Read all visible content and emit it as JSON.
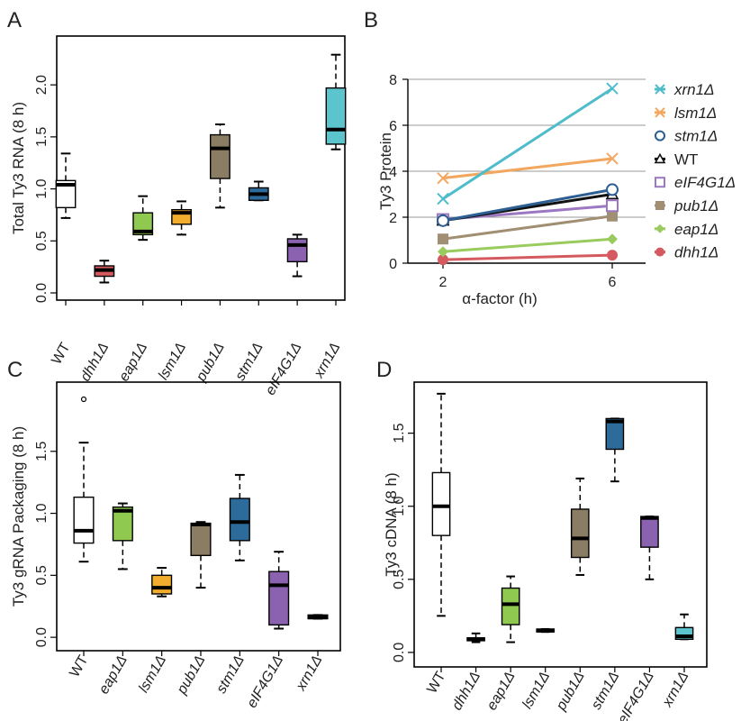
{
  "chart_data": [
    {
      "panel": "A",
      "type": "box",
      "ylabel": "Total Ty3 RNA (8 h)",
      "ylim": [
        0,
        2.4
      ],
      "yticks": [
        0.0,
        0.5,
        1.0,
        1.5,
        2.0
      ],
      "ytick_labels": [
        "0.0",
        "0.5",
        "1.0",
        "1.5",
        "2.0"
      ],
      "categories": [
        "WT",
        "dhh1Δ",
        "eap1Δ",
        "lsm1Δ",
        "pub1Δ",
        "stm1Δ",
        "eIF4G1Δ",
        "xrn1Δ"
      ],
      "italic": [
        false,
        true,
        true,
        true,
        true,
        true,
        true,
        true
      ],
      "colors": [
        "#ffffff",
        "#d45a5f",
        "#8fc94f",
        "#f2ac2e",
        "#8a7d63",
        "#2d6b9a",
        "#8a62b0",
        "#5bc4cd"
      ],
      "boxes": [
        {
          "whislo": 0.72,
          "q1": 0.82,
          "med": 1.04,
          "q3": 1.08,
          "whishi": 1.34
        },
        {
          "whislo": 0.1,
          "q1": 0.16,
          "med": 0.22,
          "q3": 0.26,
          "whishi": 0.31
        },
        {
          "whislo": 0.51,
          "q1": 0.56,
          "med": 0.59,
          "q3": 0.77,
          "whishi": 0.93
        },
        {
          "whislo": 0.56,
          "q1": 0.66,
          "med": 0.77,
          "q3": 0.8,
          "whishi": 0.88
        },
        {
          "whislo": 0.82,
          "q1": 1.1,
          "med": 1.39,
          "q3": 1.52,
          "whishi": 1.62
        },
        {
          "whislo": 0.89,
          "q1": 0.89,
          "med": 0.95,
          "q3": 1.01,
          "whishi": 1.07
        },
        {
          "whislo": 0.16,
          "q1": 0.3,
          "med": 0.46,
          "q3": 0.52,
          "whishi": 0.56
        },
        {
          "whislo": 1.38,
          "q1": 1.43,
          "med": 1.57,
          "q3": 1.97,
          "whishi": 2.29
        }
      ]
    },
    {
      "panel": "B",
      "type": "line",
      "ylabel": "Ty3 Protein",
      "xlabel": "α-factor (h)",
      "x": [
        2,
        6
      ],
      "xticks": [
        2,
        6
      ],
      "ylim": [
        0,
        8
      ],
      "yticks": [
        0,
        2,
        4,
        6,
        8
      ],
      "grid": true,
      "legend_position": "right",
      "series": [
        {
          "name": "xrn1Δ",
          "italic": true,
          "color": "#4fbccb",
          "marker": "x",
          "values": [
            2.8,
            7.6
          ]
        },
        {
          "name": "lsm1Δ",
          "italic": true,
          "color": "#f2a75e",
          "marker": "x",
          "values": [
            3.7,
            4.55
          ]
        },
        {
          "name": "stm1Δ",
          "italic": true,
          "color": "#2d5f93",
          "marker": "circle-open",
          "values": [
            1.85,
            3.2
          ]
        },
        {
          "name": "WT",
          "italic": false,
          "color": "#111111",
          "marker": "triangle-open",
          "values": [
            1.85,
            3.0
          ]
        },
        {
          "name": "eIF4G1Δ",
          "italic": true,
          "color": "#9c78c2",
          "marker": "square-open",
          "values": [
            1.9,
            2.5
          ]
        },
        {
          "name": "pub1Δ",
          "italic": true,
          "color": "#a08f72",
          "marker": "square",
          "values": [
            1.05,
            2.05
          ]
        },
        {
          "name": "eap1Δ",
          "italic": true,
          "color": "#9acb5e",
          "marker": "diamond",
          "values": [
            0.5,
            1.05
          ]
        },
        {
          "name": "dhh1Δ",
          "italic": true,
          "color": "#d45a5f",
          "marker": "circle",
          "values": [
            0.15,
            0.35
          ]
        }
      ]
    },
    {
      "panel": "C",
      "type": "box",
      "ylabel": "Ty3 gRNA Packaging (8 h)",
      "ylim": [
        -0.05,
        2.0
      ],
      "yticks": [
        0.0,
        0.5,
        1.0,
        1.5
      ],
      "ytick_labels": [
        "0.0",
        "0.5",
        "1.0",
        "1.5"
      ],
      "categories": [
        "WT",
        "eap1Δ",
        "lsm1Δ",
        "pub1Δ",
        "stm1Δ",
        "eIF4G1Δ",
        "xrn1Δ"
      ],
      "italic": [
        false,
        true,
        true,
        true,
        true,
        true,
        true
      ],
      "colors": [
        "#ffffff",
        "#8fc94f",
        "#f2ac2e",
        "#8a7d63",
        "#2d6b9a",
        "#8a62b0",
        "#222222"
      ],
      "boxes": [
        {
          "whislo": 0.61,
          "q1": 0.76,
          "med": 0.86,
          "q3": 1.13,
          "whishi": 1.57,
          "outliers": [
            1.92
          ]
        },
        {
          "whislo": 0.55,
          "q1": 0.78,
          "med": 1.02,
          "q3": 1.05,
          "whishi": 1.08
        },
        {
          "whislo": 0.33,
          "q1": 0.35,
          "med": 0.4,
          "q3": 0.5,
          "whishi": 0.56
        },
        {
          "whislo": 0.4,
          "q1": 0.66,
          "med": 0.91,
          "q3": 0.92,
          "whishi": 0.93
        },
        {
          "whislo": 0.62,
          "q1": 0.78,
          "med": 0.93,
          "q3": 1.12,
          "whishi": 1.31
        },
        {
          "whislo": 0.07,
          "q1": 0.1,
          "med": 0.42,
          "q3": 0.53,
          "whishi": 0.69
        },
        {
          "whislo": 0.15,
          "q1": 0.15,
          "med": 0.16,
          "q3": 0.18,
          "whishi": 0.18
        }
      ]
    },
    {
      "panel": "D",
      "type": "box",
      "ylabel": "Ty3 cDNA (8 h)",
      "ylim": [
        -0.05,
        1.8
      ],
      "yticks": [
        0.0,
        0.5,
        1.0,
        1.5
      ],
      "ytick_labels": [
        "0.0",
        "0.5",
        "1.0",
        "1.5"
      ],
      "categories": [
        "WT",
        "dhh1Δ",
        "eap1Δ",
        "lsm1Δ",
        "pub1Δ",
        "stm1Δ",
        "eIF4G1Δ",
        "xrn1Δ"
      ],
      "italic": [
        false,
        true,
        true,
        true,
        true,
        true,
        true,
        true
      ],
      "colors": [
        "#ffffff",
        "#222222",
        "#8fc94f",
        "#222222",
        "#8a7d63",
        "#2d6b9a",
        "#8a62b0",
        "#5bc4cd"
      ],
      "boxes": [
        {
          "whislo": 0.25,
          "q1": 0.8,
          "med": 1.0,
          "q3": 1.23,
          "whishi": 1.77
        },
        {
          "whislo": 0.07,
          "q1": 0.08,
          "med": 0.09,
          "q3": 0.1,
          "whishi": 0.13
        },
        {
          "whislo": 0.07,
          "q1": 0.19,
          "med": 0.33,
          "q3": 0.44,
          "whishi": 0.52
        },
        {
          "whislo": 0.14,
          "q1": 0.14,
          "med": 0.15,
          "q3": 0.16,
          "whishi": 0.16
        },
        {
          "whislo": 0.53,
          "q1": 0.65,
          "med": 0.78,
          "q3": 0.98,
          "whishi": 1.19
        },
        {
          "whislo": 1.17,
          "q1": 1.39,
          "med": 1.58,
          "q3": 1.6,
          "whishi": 1.6
        },
        {
          "whislo": 0.5,
          "q1": 0.72,
          "med": 0.92,
          "q3": 0.93,
          "whishi": 0.93
        },
        {
          "whislo": 0.09,
          "q1": 0.09,
          "med": 0.11,
          "q3": 0.17,
          "whishi": 0.26
        }
      ]
    }
  ]
}
